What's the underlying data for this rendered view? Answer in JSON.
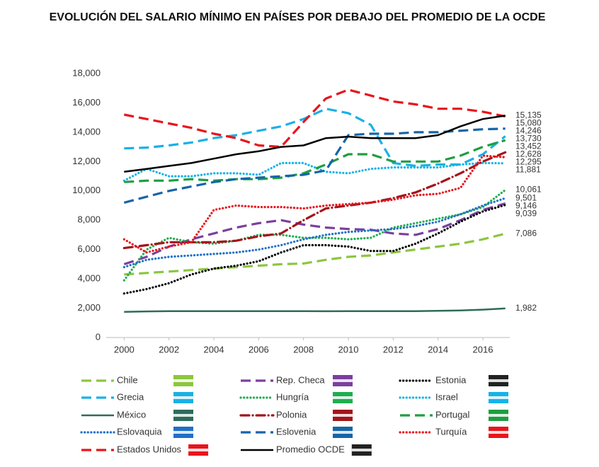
{
  "chart_data": {
    "type": "line",
    "title": "EVOLUCIÓN DEL SALARIO MÍNIMO EN PAÍSES POR DEBAJO DEL PROMEDIO DE LA OCDE",
    "x": [
      2000,
      2001,
      2002,
      2003,
      2004,
      2005,
      2006,
      2007,
      2008,
      2009,
      2010,
      2011,
      2012,
      2013,
      2014,
      2015,
      2016,
      2017
    ],
    "xlim": [
      1999.2,
      2017.2
    ],
    "xticks": [
      2000,
      2002,
      2004,
      2006,
      2008,
      2010,
      2012,
      2014,
      2016
    ],
    "ylim": [
      0,
      18000
    ],
    "yticks": [
      0,
      {
        "value": 2000,
        "label": "2,000"
      },
      {
        "value": 4000,
        "label": "4,000"
      },
      {
        "value": 6000,
        "label": "6,000"
      },
      {
        "value": 8000,
        "label": "8,000"
      },
      {
        "value": 10000,
        "label": "10,000"
      },
      {
        "value": 12000,
        "label": "12,000"
      },
      {
        "value": 14000,
        "label": "14,000"
      },
      {
        "value": 16000,
        "label": "16,000"
      },
      {
        "value": 18000,
        "label": "18,000"
      }
    ],
    "series": [
      {
        "name": "Chile",
        "color": "#8cc63f",
        "style": "dashed",
        "end_label": "7,086",
        "values": [
          4300,
          4400,
          4500,
          4600,
          4700,
          4800,
          4900,
          5000,
          5050,
          5300,
          5500,
          5600,
          5800,
          6000,
          6200,
          6400,
          6700,
          7086
        ]
      },
      {
        "name": "Rep. Checa",
        "color": "#7b3f9e",
        "style": "dashed",
        "end_label": "9,146",
        "values": [
          5000,
          5500,
          6200,
          6700,
          7100,
          7500,
          7800,
          8000,
          7700,
          7500,
          7400,
          7350,
          7100,
          7000,
          7400,
          8000,
          8700,
          9146
        ]
      },
      {
        "name": "Estonia",
        "color": "#000000",
        "style": "dotted",
        "end_label": "9,039",
        "values": [
          3000,
          3300,
          3700,
          4300,
          4700,
          4900,
          5200,
          5800,
          6300,
          6300,
          6200,
          5900,
          5900,
          6400,
          7100,
          7900,
          8600,
          9039
        ]
      },
      {
        "name": "Grecia",
        "color": "#1ab0e6",
        "style": "dashed",
        "end_label": "13,730",
        "values": [
          12900,
          12950,
          13100,
          13300,
          13600,
          13800,
          14100,
          14400,
          14900,
          15600,
          15300,
          14500,
          11900,
          11700,
          11800,
          11800,
          12500,
          13730
        ]
      },
      {
        "name": "Hungría",
        "color": "#1fae4f",
        "style": "dotted",
        "end_label": "10,061",
        "values": [
          3900,
          6000,
          6800,
          6500,
          6400,
          6600,
          7000,
          7000,
          6800,
          6800,
          6700,
          6800,
          7500,
          7800,
          8100,
          8400,
          8900,
          10061
        ]
      },
      {
        "name": "Israel",
        "color": "#15b3e8",
        "style": "dotted",
        "end_label": "11,881",
        "values": [
          10700,
          11500,
          11000,
          11000,
          11200,
          11200,
          11100,
          11900,
          11900,
          11300,
          11200,
          11500,
          11600,
          11600,
          11600,
          11800,
          11900,
          11881
        ]
      },
      {
        "name": "México",
        "color": "#2e6b5a",
        "style": "solid",
        "end_label": "1,982",
        "values": [
          1750,
          1780,
          1800,
          1800,
          1800,
          1800,
          1800,
          1800,
          1800,
          1790,
          1800,
          1800,
          1800,
          1800,
          1820,
          1850,
          1900,
          1982
        ]
      },
      {
        "name": "Polonia",
        "color": "#a3151b",
        "style": "dashdot",
        "end_label": "12,628",
        "values": [
          6100,
          6300,
          6500,
          6500,
          6500,
          6600,
          6900,
          7100,
          8000,
          8800,
          9000,
          9200,
          9500,
          9900,
          10500,
          11200,
          12000,
          12628
        ]
      },
      {
        "name": "Portugal",
        "color": "#1f9e3f",
        "style": "dashed",
        "end_label": "13,452",
        "values": [
          10600,
          10700,
          10700,
          10800,
          10700,
          10800,
          10800,
          10900,
          11200,
          11800,
          12500,
          12500,
          12000,
          12000,
          12000,
          12400,
          13000,
          13452
        ]
      },
      {
        "name": "Eslovaquia",
        "color": "#1f6fc8",
        "style": "dotted",
        "end_label": "9,501",
        "values": [
          4800,
          5300,
          5500,
          5600,
          5700,
          5800,
          6000,
          6300,
          6700,
          7000,
          7200,
          7300,
          7400,
          7600,
          7900,
          8400,
          9000,
          9501
        ]
      },
      {
        "name": "Eslovenia",
        "color": "#1565a8",
        "style": "dashed",
        "end_label": "14,246",
        "values": [
          9200,
          9600,
          10000,
          10300,
          10600,
          10800,
          10900,
          11000,
          11100,
          11400,
          13800,
          13900,
          13900,
          14000,
          14000,
          14100,
          14200,
          14246
        ]
      },
      {
        "name": "Turquía",
        "color": "#e8141c",
        "style": "dotted",
        "end_label": "12,295",
        "values": [
          6700,
          5800,
          6200,
          6500,
          8700,
          9000,
          8900,
          8900,
          8800,
          9000,
          9100,
          9200,
          9400,
          9700,
          9800,
          10200,
          12400,
          12295
        ]
      },
      {
        "name": "Estados Unidos",
        "color": "#e8141c",
        "style": "dashed",
        "end_label": "15,080",
        "values": [
          15200,
          14900,
          14600,
          14300,
          13900,
          13600,
          13100,
          13000,
          14700,
          16300,
          16900,
          16500,
          16100,
          15900,
          15600,
          15600,
          15400,
          15080
        ]
      },
      {
        "name": "Promedio OCDE",
        "color": "#000000",
        "style": "solid",
        "end_label": "15,135",
        "values": [
          11300,
          11500,
          11700,
          11900,
          12200,
          12500,
          12700,
          13000,
          13100,
          13600,
          13700,
          13600,
          13600,
          13600,
          13800,
          14400,
          14900,
          15135
        ]
      }
    ]
  }
}
